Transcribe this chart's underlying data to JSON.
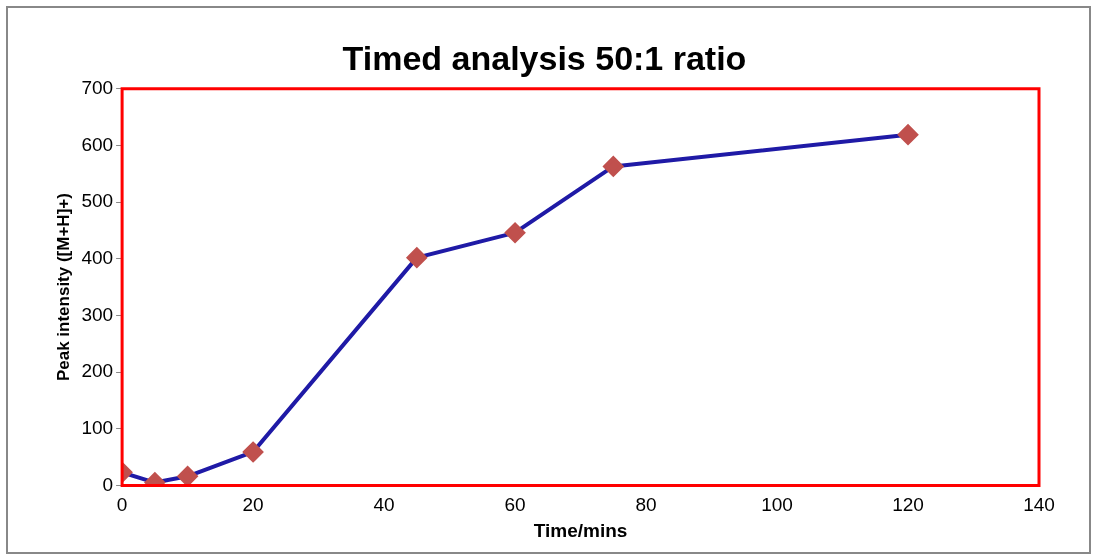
{
  "chart_data": {
    "type": "line",
    "title": "Timed analysis 50:1 ratio",
    "xlabel": "Time/mins",
    "ylabel": "Peak intensity ([M+H]+)",
    "x": [
      0,
      5,
      10,
      20,
      45,
      60,
      75,
      120
    ],
    "series": [
      {
        "color": "#1f1aa6",
        "values": [
          23,
          5,
          16,
          59,
          402,
          446,
          563,
          619
        ]
      }
    ],
    "xlim": [
      0,
      140
    ],
    "xticks": [
      0,
      20,
      40,
      60,
      80,
      100,
      120,
      140
    ],
    "ylim": [
      0,
      700
    ],
    "yticks": [
      0,
      100,
      200,
      300,
      400,
      500,
      600,
      700
    ],
    "grid": false,
    "legend": false,
    "marker": "diamond",
    "line_style": "solid"
  }
}
